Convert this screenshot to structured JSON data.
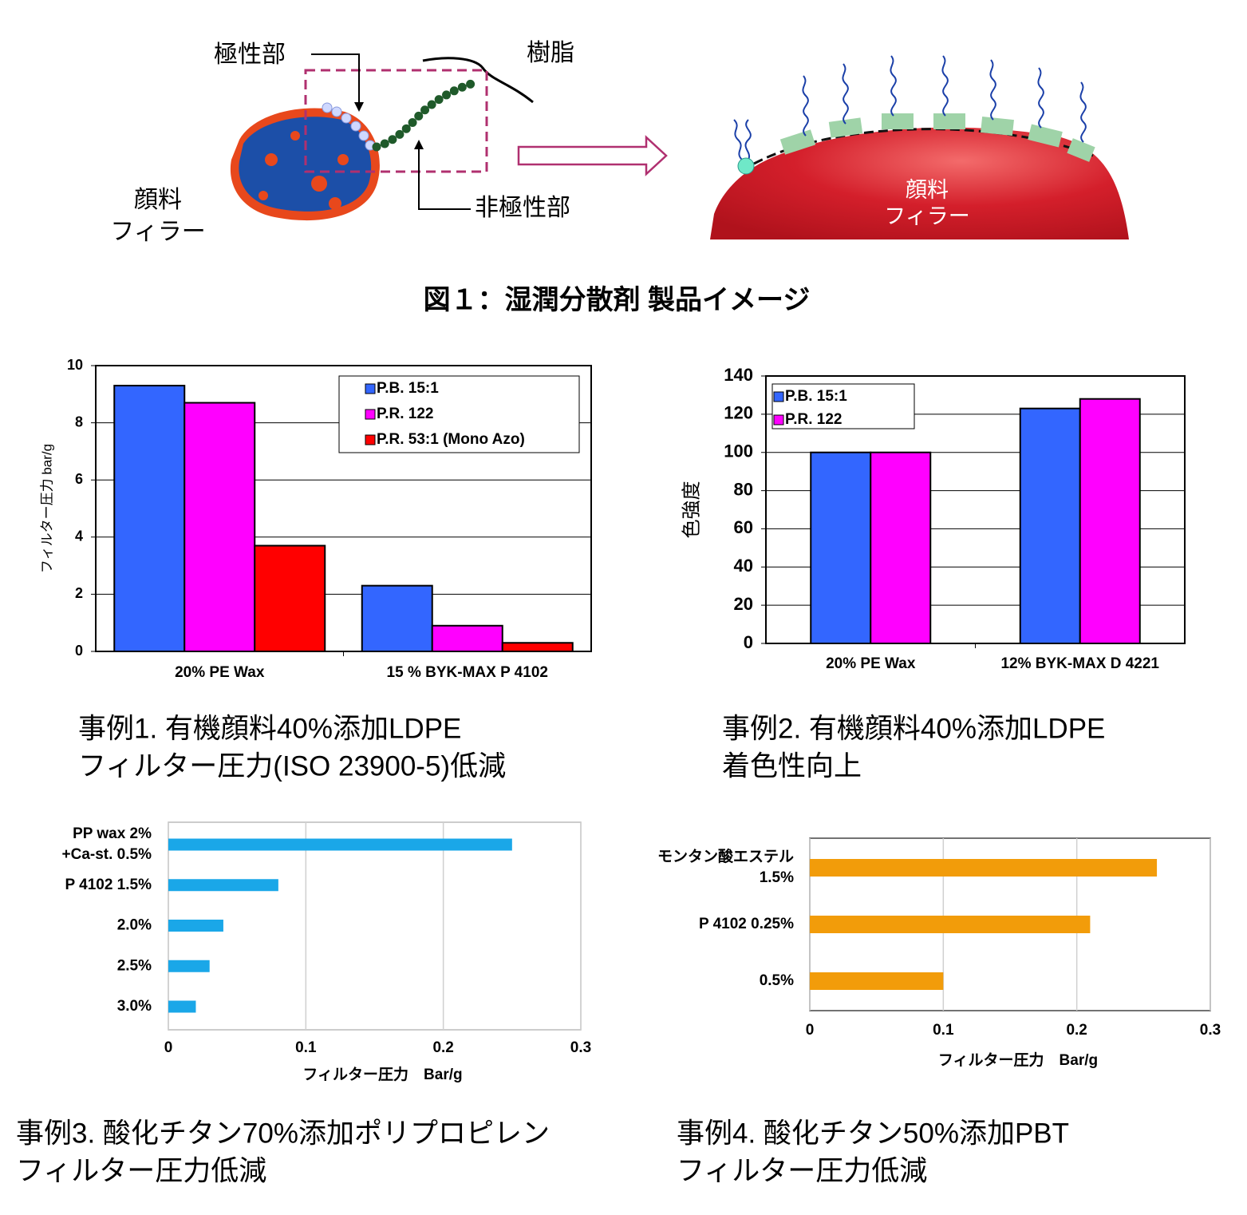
{
  "diagram": {
    "polar_label": "極性部",
    "resin_label": "樹脂",
    "pigment_label_left": [
      "顔料",
      "フィラー"
    ],
    "nonpolar_label": "非極性部",
    "pigment_label_right": [
      "顔料",
      "フィラー"
    ],
    "caption": "図１：湿潤分散剤 製品イメージ"
  },
  "chart_data": [
    {
      "type": "bar",
      "categories": [
        "20% PE Wax",
        "15 % BYK-MAX P 4102"
      ],
      "y_label": "フィルター圧力 bar/g",
      "series": [
        {
          "name": "P.B. 15:1",
          "color": "#3366ff",
          "values": [
            9.3,
            2.3
          ]
        },
        {
          "name": "P.R. 122",
          "color": "#ff00ff",
          "values": [
            8.7,
            0.9
          ]
        },
        {
          "name": "P.R. 53:1 (Mono Azo)",
          "color": "#ff0000",
          "values": [
            3.7,
            0.3
          ]
        }
      ],
      "ylim": [
        0,
        10
      ],
      "yticks": [
        0,
        2,
        4,
        6,
        8,
        10
      ],
      "grid": true,
      "legend": "top-right",
      "caption": [
        "事例1. 有機顔料40%添加LDPE",
        "フィルター圧力(ISO 23900-5)低減"
      ]
    },
    {
      "type": "bar",
      "categories": [
        "20% PE Wax",
        "12% BYK-MAX D 4221"
      ],
      "y_label": "色強度",
      "series": [
        {
          "name": "P.B. 15:1",
          "color": "#3366ff",
          "values": [
            100,
            123
          ]
        },
        {
          "name": "P.R. 122",
          "color": "#ff00ff",
          "values": [
            100,
            128
          ]
        }
      ],
      "ylim": [
        0,
        140
      ],
      "yticks": [
        0,
        20,
        40,
        60,
        80,
        100,
        120,
        140
      ],
      "grid": true,
      "legend": "top-left",
      "caption": [
        "事例2. 有機顔料40%添加LDPE",
        "着色性向上"
      ]
    },
    {
      "type": "barh",
      "categories": [
        [
          "PP wax 2%",
          "+Ca-st. 0.5%"
        ],
        [
          "P 4102 1.5%"
        ],
        [
          "2.0%"
        ],
        [
          "2.5%"
        ],
        [
          "3.0%"
        ]
      ],
      "values": [
        0.25,
        0.08,
        0.04,
        0.03,
        0.02
      ],
      "color": "#1aa7e8",
      "x_label": "フィルター圧力　Bar/g",
      "xlim": [
        0,
        0.3
      ],
      "xticks": [
        0,
        0.1,
        0.2,
        0.3
      ],
      "grid": true,
      "caption": [
        "事例3. 酸化チタン70%添加ポリプロピレン",
        "フィルター圧力低減"
      ]
    },
    {
      "type": "barh",
      "categories": [
        [
          "モンタン酸エステル",
          "1.5%"
        ],
        [
          "P 4102 0.25%"
        ],
        [
          "0.5%"
        ]
      ],
      "values": [
        0.26,
        0.21,
        0.1
      ],
      "color": "#f29c0a",
      "x_label": "フィルター圧力　Bar/g",
      "xlim": [
        0,
        0.3
      ],
      "xticks": [
        0,
        0.1,
        0.2,
        0.3
      ],
      "grid": true,
      "caption": [
        "事例4. 酸化チタン50%添加PBT",
        "フィルター圧力低減"
      ]
    }
  ]
}
